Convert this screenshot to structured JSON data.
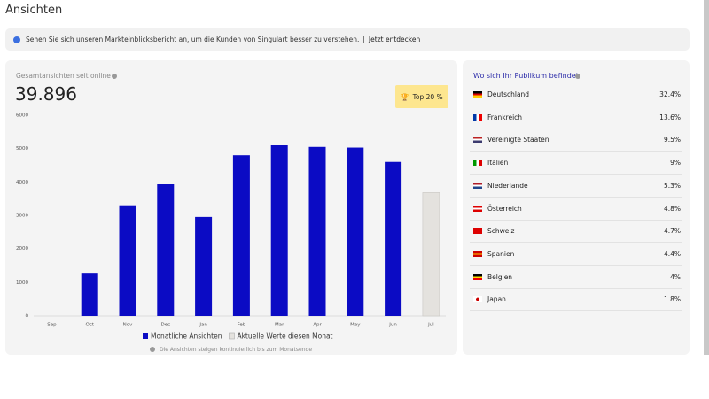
{
  "header": {
    "title": "Ansichten"
  },
  "banner": {
    "text": "Sehen Sie sich unseren Markteinblicksbericht an, um die Kunden von Singulart besser zu verstehen.",
    "separator": "|",
    "link": "Jetzt entdecken"
  },
  "stats": {
    "label": "Gesamtansichten seit online",
    "value": "39.896",
    "badge": "Top 20 %"
  },
  "chart_data": {
    "type": "bar",
    "categories": [
      "Sep",
      "Oct",
      "Nov",
      "Dec",
      "Jan",
      "Feb",
      "Mar",
      "Apr",
      "May",
      "Jun",
      "Jul"
    ],
    "series": [
      {
        "name": "Monatliche Ansichten",
        "color": "#0b0bc4",
        "values": [
          null,
          1270,
          3300,
          3950,
          2950,
          4800,
          5100,
          5050,
          5030,
          4600,
          null
        ]
      },
      {
        "name": "Aktuelle Werte diesen Monat",
        "color": "#e4e2de",
        "values": [
          null,
          null,
          null,
          null,
          null,
          null,
          null,
          null,
          null,
          null,
          3680
        ]
      }
    ],
    "ylim": [
      0,
      6000
    ],
    "yticks": [
      0,
      1000,
      2000,
      3000,
      4000,
      5000,
      6000
    ],
    "note": "Die Ansichten steigen kontinuierlich bis zum Monatsende"
  },
  "audience": {
    "title": "Wo sich Ihr Publikum befindet",
    "rows": [
      {
        "country": "Deutschland",
        "share": "32.4%"
      },
      {
        "country": "Frankreich",
        "share": "13.6%"
      },
      {
        "country": "Vereinigte Staaten",
        "share": "9.5%"
      },
      {
        "country": "Italien",
        "share": "9%"
      },
      {
        "country": "Niederlande",
        "share": "5.3%"
      },
      {
        "country": "Österreich",
        "share": "4.8%"
      },
      {
        "country": "Schweiz",
        "share": "4.7%"
      },
      {
        "country": "Spanien",
        "share": "4.4%"
      },
      {
        "country": "Belgien",
        "share": "4%"
      },
      {
        "country": "Japan",
        "share": "1.8%"
      }
    ]
  }
}
